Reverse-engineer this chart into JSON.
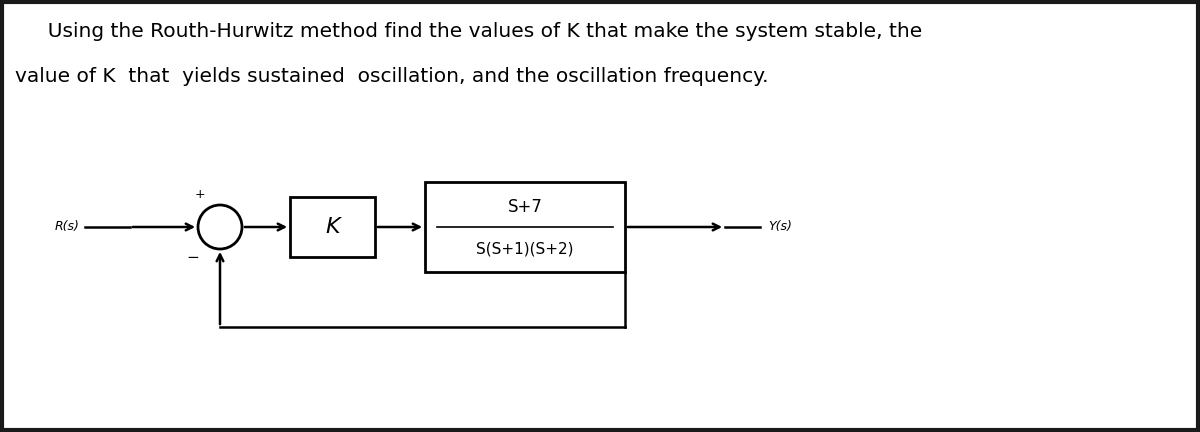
{
  "title_line1": "  Using the Routh-Hurwitz method find the values of K that make the system stable, the",
  "title_line2": "value of K  that  yields sustained  oscillation, and the oscillation frequency.",
  "background_color": "#ffffff",
  "border_color": "#1a1a1a",
  "block_edge_color": "#000000",
  "text_color": "#000000",
  "Rs_label": "R(s)",
  "Ys_label": "Y(s)",
  "K_label": "K",
  "tf_numerator": "S+7",
  "tf_denominator": "S(S+1)(S+2)",
  "plus_sign": "+",
  "minus_sign": "−",
  "title_fontsize": 14.5,
  "label_fontsize": 9,
  "block_fontsize": 12,
  "k_fontsize": 16,
  "line_lw": 1.8,
  "block_lw": 2.0
}
